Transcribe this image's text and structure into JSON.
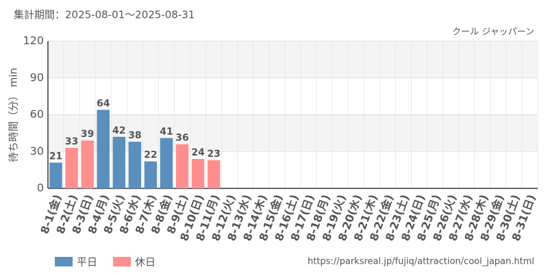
{
  "chart_data": {
    "type": "bar",
    "title": "集計期間：2025-08-01～2025-08-31",
    "subtitle": "クール ジャッパーン",
    "y_label": "待ち時間（分） min",
    "source": "https://parksreal.jp/fujiq/attraction/cool_japan.html",
    "categories": [
      "8-1(金)",
      "8-2(土)",
      "8-3(日)",
      "8-4(月)",
      "8-5(火)",
      "8-6(水)",
      "8-7(木)",
      "8-8(金)",
      "8-9(土)",
      "8-10(日)",
      "8-11(月)",
      "8-12(火)",
      "8-13(水)",
      "8-14(木)",
      "8-15(金)",
      "8-16(土)",
      "8-17(日)",
      "8-18(月)",
      "8-19(火)",
      "8-20(水)",
      "8-21(木)",
      "8-22(金)",
      "8-23(土)",
      "8-24(日)",
      "8-25(月)",
      "8-26(火)",
      "8-27(水)",
      "8-28(木)",
      "8-29(金)",
      "8-30(土)",
      "8-31(日)"
    ],
    "category_colors": [
      "#555",
      "#f07878",
      "#f07878",
      "#555",
      "#555",
      "#555",
      "#555",
      "#555",
      "#f07878",
      "#f07878",
      "#f07878",
      "#555",
      "#555",
      "#555",
      "#555",
      "#f07878",
      "#f07878",
      "#555",
      "#555",
      "#555",
      "#555",
      "#555",
      "#f07878",
      "#f07878",
      "#555",
      "#555",
      "#555",
      "#555",
      "#555",
      "#f07878",
      "#f07878"
    ],
    "series": [
      {
        "name": "平日",
        "color": "#5b8fbd",
        "label_color": "#4a7aa8",
        "values": [
          21,
          null,
          null,
          64,
          42,
          38,
          22,
          41,
          null,
          null,
          null,
          null,
          null,
          null,
          null,
          null,
          null,
          null,
          null,
          null,
          null,
          null,
          null,
          null,
          null,
          null,
          null,
          null,
          null,
          null,
          null
        ]
      },
      {
        "name": "休日",
        "color": "#ff8f8f",
        "label_color": "#f07878",
        "values": [
          null,
          33,
          39,
          null,
          null,
          null,
          null,
          null,
          36,
          24,
          23,
          null,
          null,
          null,
          null,
          null,
          null,
          null,
          null,
          null,
          null,
          null,
          null,
          null,
          null,
          null,
          null,
          null,
          null,
          null,
          null
        ]
      }
    ],
    "ylim": [
      0,
      120
    ],
    "yticks": [
      0,
      30,
      60,
      90,
      120
    ],
    "grid": true
  }
}
